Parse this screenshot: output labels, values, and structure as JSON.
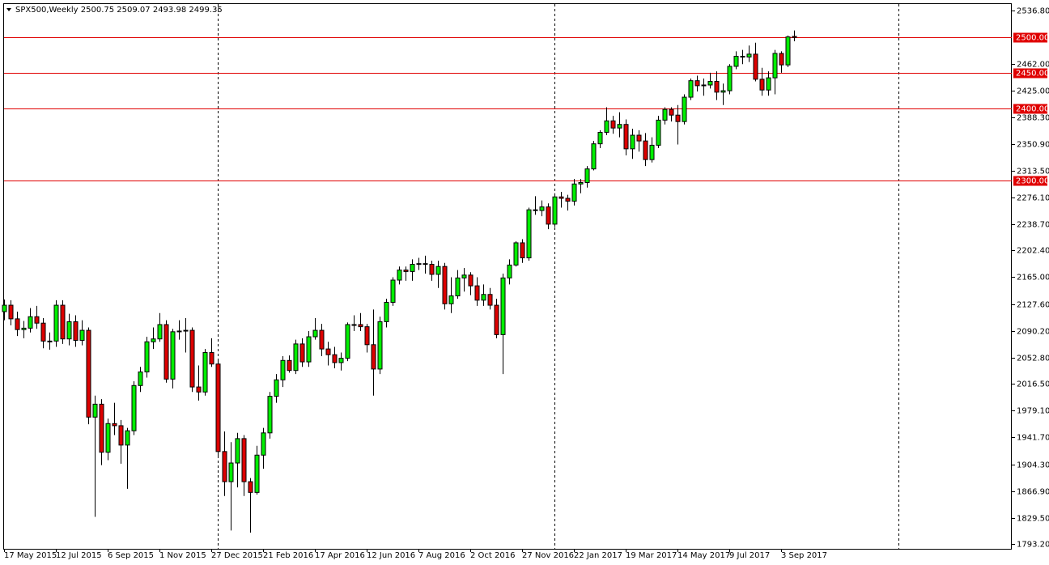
{
  "chart_data": {
    "type": "candlestick",
    "header": "SPX500,Weekly  2500.75 2509.07 2493.98 2499.35",
    "categories": [
      "17 May 2015",
      null,
      null,
      null,
      null,
      null,
      null,
      null,
      "12 Jul 2015",
      null,
      null,
      null,
      null,
      null,
      null,
      null,
      "6 Sep 2015",
      null,
      null,
      null,
      null,
      null,
      null,
      null,
      "1 Nov 2015",
      null,
      null,
      null,
      null,
      null,
      null,
      null,
      "27 Dec 2015",
      null,
      null,
      null,
      null,
      null,
      null,
      null,
      "21 Feb 2016",
      null,
      null,
      null,
      null,
      null,
      null,
      null,
      "17 Apr 2016",
      null,
      null,
      null,
      null,
      null,
      null,
      null,
      "12 Jun 2016",
      null,
      null,
      null,
      null,
      null,
      null,
      null,
      "7 Aug 2016",
      null,
      null,
      null,
      null,
      null,
      null,
      null,
      "2 Oct 2016",
      null,
      null,
      null,
      null,
      null,
      null,
      null,
      "27 Nov 2016",
      null,
      null,
      null,
      null,
      null,
      null,
      null,
      "22 Jan 2017",
      null,
      null,
      null,
      null,
      null,
      null,
      null,
      "19 Mar 2017",
      null,
      null,
      null,
      null,
      null,
      null,
      null,
      "14 May 2017",
      null,
      null,
      null,
      null,
      null,
      null,
      null,
      "9 Jul 2017",
      null,
      null,
      null,
      null,
      null,
      null,
      null,
      "3 Sep 2017",
      null,
      null
    ],
    "open": [
      2117,
      2126,
      2107,
      2092,
      2094,
      2110,
      2101,
      2076,
      2076,
      2126,
      2079,
      2103,
      2077,
      2091,
      1970,
      1988,
      1921,
      1961,
      1958,
      1931,
      1951,
      2014,
      2033,
      2075,
      2079,
      2099,
      2023,
      2089,
      2090,
      2091,
      2012,
      2005,
      2060,
      2044,
      1922,
      1880,
      1906,
      1940,
      1880,
      1865,
      1917,
      1948,
      1999,
      2022,
      2049,
      2035,
      2072,
      2047,
      2082,
      2091,
      2065,
      2057,
      2046,
      2052,
      2099,
      2099,
      2096,
      2071,
      2037,
      2103,
      2130,
      2161,
      2175,
      2173,
      2183,
      2184,
      2183,
      2169,
      2180,
      2128,
      2139,
      2164,
      2168,
      2153,
      2133,
      2141,
      2126,
      2085,
      2164,
      2182,
      2213,
      2192,
      2259,
      2258,
      2263,
      2239,
      2277,
      2275,
      2271,
      2295,
      2297,
      2316,
      2351,
      2367,
      2383,
      2373,
      2378,
      2344,
      2363,
      2355,
      2329,
      2349,
      2384,
      2399,
      2391,
      2382,
      2416,
      2439,
      2432,
      2433,
      2438,
      2423,
      2425,
      2459,
      2473,
      2472,
      2476,
      2441,
      2426,
      2443,
      2477,
      2461,
      2500.75
    ],
    "high": [
      2134,
      2133,
      2117,
      2104,
      2122,
      2125,
      2108,
      2088,
      2133,
      2133,
      2114,
      2112,
      2105,
      2095,
      2000,
      1995,
      1968,
      1990,
      1966,
      1955,
      2020,
      2040,
      2082,
      2095,
      2115,
      2105,
      2093,
      2105,
      2108,
      2095,
      2042,
      2065,
      2080,
      2050,
      1950,
      1935,
      1948,
      1945,
      1885,
      1930,
      1955,
      2005,
      2030,
      2055,
      2056,
      2078,
      2080,
      2090,
      2108,
      2100,
      2075,
      2068,
      2060,
      2102,
      2112,
      2115,
      2100,
      2120,
      2110,
      2135,
      2165,
      2180,
      2180,
      2190,
      2192,
      2195,
      2188,
      2188,
      2185,
      2165,
      2175,
      2178,
      2172,
      2165,
      2155,
      2150,
      2135,
      2170,
      2190,
      2215,
      2218,
      2262,
      2278,
      2272,
      2268,
      2282,
      2284,
      2280,
      2302,
      2302,
      2320,
      2355,
      2370,
      2402,
      2390,
      2395,
      2385,
      2372,
      2370,
      2366,
      2360,
      2390,
      2402,
      2402,
      2405,
      2420,
      2442,
      2446,
      2442,
      2450,
      2452,
      2435,
      2462,
      2480,
      2482,
      2488,
      2492,
      2457,
      2452,
      2482,
      2480,
      2502,
      2509.07
    ],
    "low": [
      2105,
      2098,
      2083,
      2080,
      2088,
      2093,
      2066,
      2064,
      2068,
      2072,
      2070,
      2068,
      2070,
      1960,
      1831,
      1903,
      1910,
      1945,
      1905,
      1870,
      1945,
      2005,
      2025,
      2065,
      2075,
      2018,
      2010,
      2078,
      2060,
      2005,
      1993,
      2000,
      2040,
      1915,
      1860,
      1812,
      1872,
      1860,
      1809,
      1862,
      1898,
      1940,
      1990,
      2012,
      2032,
      2030,
      2040,
      2040,
      2078,
      2055,
      2042,
      2038,
      2035,
      2048,
      2090,
      2090,
      2060,
      2000,
      2030,
      2095,
      2125,
      2155,
      2160,
      2160,
      2175,
      2170,
      2160,
      2150,
      2120,
      2115,
      2135,
      2145,
      2140,
      2125,
      2125,
      2120,
      2080,
      2030,
      2155,
      2180,
      2185,
      2188,
      2252,
      2250,
      2232,
      2235,
      2262,
      2258,
      2265,
      2282,
      2290,
      2314,
      2345,
      2363,
      2365,
      2360,
      2335,
      2330,
      2340,
      2320,
      2325,
      2345,
      2378,
      2382,
      2350,
      2378,
      2412,
      2424,
      2418,
      2428,
      2412,
      2405,
      2420,
      2455,
      2462,
      2465,
      2438,
      2418,
      2418,
      2420,
      2450,
      2458,
      2493.98
    ],
    "close": [
      2126,
      2107,
      2092,
      2094,
      2110,
      2101,
      2076,
      2076,
      2126,
      2079,
      2103,
      2077,
      2091,
      1970,
      1988,
      1921,
      1961,
      1958,
      1931,
      1951,
      2014,
      2033,
      2075,
      2079,
      2099,
      2023,
      2089,
      2090,
      2091,
      2012,
      2005,
      2060,
      2044,
      1922,
      1880,
      1906,
      1940,
      1880,
      1865,
      1917,
      1948,
      1999,
      2022,
      2049,
      2035,
      2072,
      2047,
      2082,
      2091,
      2065,
      2057,
      2046,
      2052,
      2099,
      2099,
      2096,
      2071,
      2037,
      2103,
      2130,
      2161,
      2175,
      2173,
      2183,
      2184,
      2183,
      2169,
      2180,
      2128,
      2139,
      2164,
      2168,
      2153,
      2133,
      2141,
      2126,
      2085,
      2164,
      2182,
      2213,
      2192,
      2259,
      2258,
      2263,
      2239,
      2277,
      2275,
      2271,
      2295,
      2297,
      2316,
      2351,
      2367,
      2383,
      2373,
      2378,
      2344,
      2363,
      2355,
      2329,
      2349,
      2384,
      2399,
      2391,
      2382,
      2416,
      2439,
      2432,
      2433,
      2438,
      2423,
      2425,
      2459,
      2473,
      2472,
      2476,
      2441,
      2426,
      2443,
      2477,
      2461,
      2500,
      2499.35
    ],
    "ylim": [
      1786.4,
      2546.96
    ],
    "yticks": [
      {
        "value": 2536.8,
        "label": "2536.80"
      },
      {
        "value": 2462,
        "label": "2462.00"
      },
      {
        "value": 2425,
        "label": "2425.00"
      },
      {
        "value": 2388.3,
        "label": "2388.30"
      },
      {
        "value": 2350.9,
        "label": "2350.90"
      },
      {
        "value": 2313.5,
        "label": "2313.50"
      },
      {
        "value": 2276.1,
        "label": "2276.10"
      },
      {
        "value": 2238.7,
        "label": "2238.70"
      },
      {
        "value": 2202.4,
        "label": "2202.40"
      },
      {
        "value": 2165,
        "label": "2165.00"
      },
      {
        "value": 2127.6,
        "label": "2127.60"
      },
      {
        "value": 2090.2,
        "label": "2090.20"
      },
      {
        "value": 2052.8,
        "label": "2052.80"
      },
      {
        "value": 2016.5,
        "label": "2016.50"
      },
      {
        "value": 1979.1,
        "label": "1979.10"
      },
      {
        "value": 1941.7,
        "label": "1941.70"
      },
      {
        "value": 1904.3,
        "label": "1904.30"
      },
      {
        "value": 1866.9,
        "label": "1866.90"
      },
      {
        "value": 1829.5,
        "label": "1829.50"
      },
      {
        "value": 1793.2,
        "label": "1793.20"
      }
    ],
    "levels": [
      {
        "value": 2500,
        "label": "2500.00"
      },
      {
        "value": 2450,
        "label": "2450.00"
      },
      {
        "value": 2400,
        "label": "2400.00"
      },
      {
        "value": 2300,
        "label": "2300.00"
      }
    ],
    "up_color": "#00ee00",
    "down_color": "#dd0000",
    "level_color": "#e00000"
  }
}
